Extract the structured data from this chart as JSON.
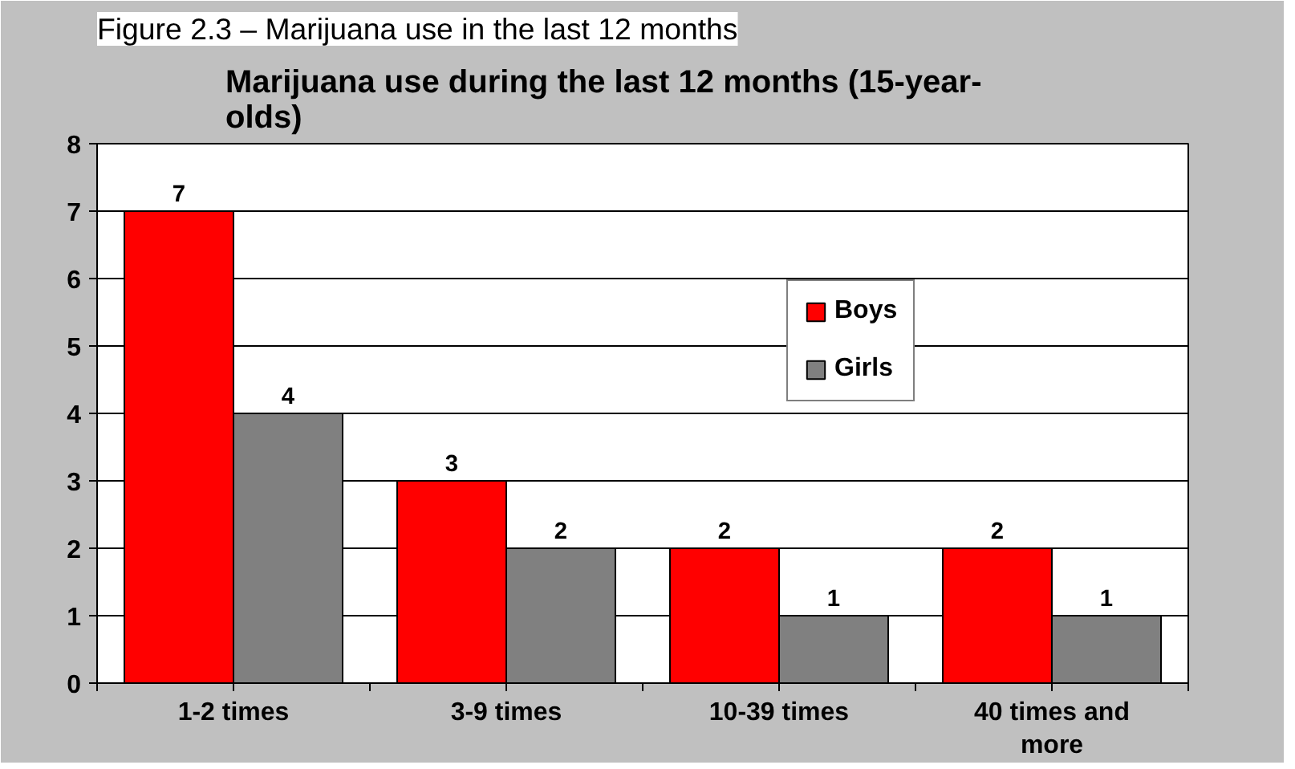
{
  "chart_data": {
    "type": "bar",
    "title": "Marijuana use during the last 12 months (15-year-olds)",
    "annotations": [
      "Figure 2.3 – Marijuana use in the last 12 months"
    ],
    "categories": [
      "1-2 times",
      "3-9 times",
      "10-39 times",
      "40 times and more"
    ],
    "series": [
      {
        "name": "Boys",
        "color": "#ff0000",
        "values": [
          7,
          3,
          2,
          2
        ]
      },
      {
        "name": "Girls",
        "color": "#808080",
        "values": [
          4,
          2,
          1,
          1
        ]
      }
    ],
    "ylim": [
      0,
      8
    ],
    "yticks": [
      0,
      1,
      2,
      3,
      4,
      5,
      6,
      7,
      8
    ],
    "grid": "y",
    "legend": "top right",
    "data_labels": true
  }
}
